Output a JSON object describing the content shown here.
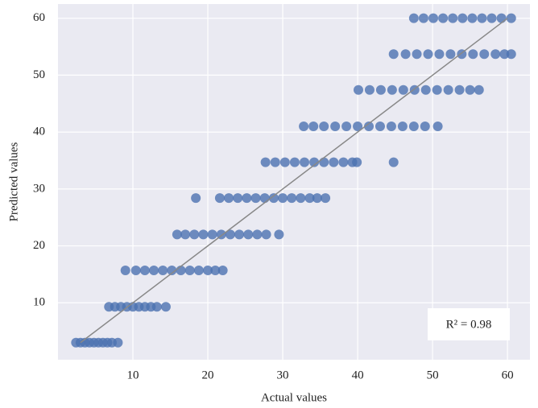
{
  "chart_data": {
    "type": "scatter",
    "x_label": "Actual values",
    "y_label": "Predicted values",
    "annotation": "R² = 0.98",
    "xlim": [
      0,
      63
    ],
    "ylim": [
      0,
      62.5
    ],
    "xticks": [
      10,
      20,
      30,
      40,
      50,
      60
    ],
    "yticks": [
      10,
      20,
      30,
      40,
      50,
      60
    ],
    "grid": true,
    "reference_line": {
      "x": [
        3,
        60
      ],
      "y": [
        3,
        60
      ],
      "color": "#888888"
    },
    "series": [
      {
        "color": "#4c72b0",
        "x": [
          2.4,
          3,
          3.6,
          4.2,
          4.8,
          5.4,
          6,
          6.6,
          7.2,
          8.0,
          6.8,
          7.6,
          8.4,
          9.2,
          10,
          10.8,
          11.6,
          12.4,
          13.2,
          14.4,
          9,
          10.4,
          11.6,
          12.8,
          14,
          15.2,
          16.4,
          17.6,
          18.8,
          20,
          21,
          22,
          15.9,
          17,
          18.2,
          19.4,
          20.6,
          21.8,
          23,
          24.2,
          25.4,
          26.6,
          27.8,
          29.5,
          18.4,
          21.6,
          22.8,
          24,
          25.2,
          26.4,
          27.6,
          28.8,
          30,
          31.2,
          32.4,
          33.6,
          34.6,
          35.7,
          27.7,
          29,
          30.3,
          31.6,
          32.9,
          34.2,
          35.5,
          36.8,
          38.1,
          39.3,
          39.9,
          44.8,
          32.8,
          34.1,
          35.5,
          37,
          38.5,
          40,
          41.5,
          43,
          44.5,
          46,
          47.5,
          49,
          50.7,
          40.1,
          41.6,
          43.1,
          44.6,
          46.1,
          47.6,
          49.1,
          50.6,
          52.1,
          53.6,
          55,
          56.2,
          44.8,
          46.4,
          47.9,
          49.4,
          50.9,
          52.4,
          53.9,
          55.4,
          56.9,
          58.4,
          59.6,
          60.5,
          47.5,
          48.8,
          50.1,
          51.4,
          52.7,
          54,
          55.3,
          56.6,
          57.9,
          59.2,
          60.5
        ],
        "values": [
          3,
          3,
          3,
          3,
          3,
          3,
          3,
          3,
          3,
          3,
          9.3,
          9.3,
          9.3,
          9.3,
          9.3,
          9.3,
          9.3,
          9.3,
          9.3,
          9.3,
          15.7,
          15.7,
          15.7,
          15.7,
          15.7,
          15.7,
          15.7,
          15.7,
          15.7,
          15.7,
          15.7,
          15.7,
          22,
          22,
          22,
          22,
          22,
          22,
          22,
          22,
          22,
          22,
          22,
          22,
          28.4,
          28.4,
          28.4,
          28.4,
          28.4,
          28.4,
          28.4,
          28.4,
          28.4,
          28.4,
          28.4,
          28.4,
          28.4,
          28.4,
          34.7,
          34.7,
          34.7,
          34.7,
          34.7,
          34.7,
          34.7,
          34.7,
          34.7,
          34.7,
          34.7,
          34.7,
          41,
          41,
          41,
          41,
          41,
          41,
          41,
          41,
          41,
          41,
          41,
          41,
          41,
          47.4,
          47.4,
          47.4,
          47.4,
          47.4,
          47.4,
          47.4,
          47.4,
          47.4,
          47.4,
          47.4,
          47.4,
          53.7,
          53.7,
          53.7,
          53.7,
          53.7,
          53.7,
          53.7,
          53.7,
          53.7,
          53.7,
          53.7,
          53.7,
          60,
          60,
          60,
          60,
          60,
          60,
          60,
          60,
          60,
          60,
          60
        ]
      }
    ]
  }
}
